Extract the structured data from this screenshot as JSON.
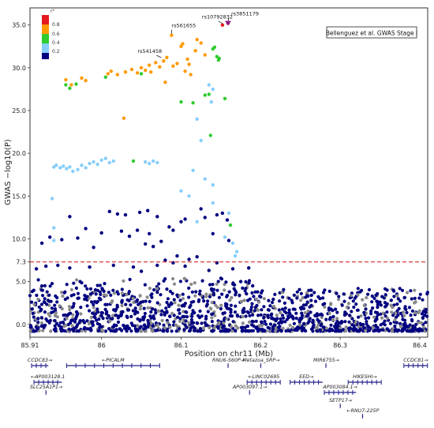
{
  "chart_data": {
    "type": "scatter",
    "title": "",
    "xlabel": "Position on chr11 (Mb)",
    "ylabel": "GWAS −log10(P)",
    "xlim": [
      85.91,
      86.41
    ],
    "ylim": [
      -1.5,
      37
    ],
    "x_ticks": [
      {
        "value": 85.91,
        "label": "85.91"
      },
      {
        "value": 86.0,
        "label": "86"
      },
      {
        "value": 86.1,
        "label": "86.1"
      },
      {
        "value": 86.2,
        "label": "86.2"
      },
      {
        "value": 86.3,
        "label": "86.3"
      },
      {
        "value": 86.4,
        "label": "86.4"
      }
    ],
    "y_ticks": [
      {
        "value": 0,
        "label": "0.0"
      },
      {
        "value": 5,
        "label": "5.0"
      },
      {
        "value": 7.3,
        "label": "7.3"
      },
      {
        "value": 10,
        "label": "10.0"
      },
      {
        "value": 15,
        "label": "15.0"
      },
      {
        "value": 20,
        "label": "20.0"
      },
      {
        "value": 25,
        "label": "25.0"
      },
      {
        "value": 30,
        "label": "30.0"
      },
      {
        "value": 35,
        "label": "35.0"
      }
    ],
    "threshold": {
      "value": 7.3,
      "color": "#d62728"
    },
    "legend_box": "Bellenguez et al. GWAS Stage I",
    "colorbar": {
      "label": "r²",
      "ticks": [
        "0.8",
        "0.6",
        "0.4",
        "0.2"
      ],
      "colors": [
        "#e41a1c",
        "#ff9900",
        "#2ecc2e",
        "#87cefa",
        "#000080"
      ]
    },
    "annotations": [
      {
        "label": "rs3851179",
        "x": 86.159,
        "y": 35.2
      },
      {
        "label": "rs10792832",
        "x": 86.152,
        "y": 35.0
      },
      {
        "label": "rs561655",
        "x": 86.088,
        "y": 33.8
      },
      {
        "label": "rs541458",
        "x": 86.075,
        "y": 31.0
      }
    ],
    "series": [
      {
        "r2_bin": ">0.8",
        "color": "#e41a1c",
        "points": [
          [
            86.159,
            35.2
          ],
          [
            86.152,
            35.0
          ]
        ]
      },
      {
        "r2_bin": "0.6-0.8",
        "color": "#ff9900",
        "points": [
          [
            85.955,
            28.6
          ],
          [
            85.962,
            28.0
          ],
          [
            85.975,
            28.8
          ],
          [
            85.98,
            28.5
          ],
          [
            86.008,
            29.3
          ],
          [
            86.012,
            29.6
          ],
          [
            86.02,
            29.2
          ],
          [
            86.03,
            29.5
          ],
          [
            86.038,
            29.8
          ],
          [
            86.045,
            29.4
          ],
          [
            86.05,
            30.0
          ],
          [
            86.055,
            29.7
          ],
          [
            86.06,
            30.3
          ],
          [
            86.062,
            29.5
          ],
          [
            86.068,
            30.6
          ],
          [
            86.073,
            30.1
          ],
          [
            86.078,
            30.8
          ],
          [
            86.082,
            31.2
          ],
          [
            86.088,
            33.8
          ],
          [
            86.09,
            30.2
          ],
          [
            86.095,
            30.5
          ],
          [
            86.1,
            32.5
          ],
          [
            86.102,
            32.8
          ],
          [
            86.105,
            29.6
          ],
          [
            86.108,
            31.0
          ],
          [
            86.11,
            30.4
          ],
          [
            86.118,
            32.0
          ],
          [
            86.12,
            33.3
          ],
          [
            86.125,
            32.9
          ],
          [
            86.13,
            31.5
          ],
          [
            86.028,
            24.1
          ],
          [
            86.08,
            28.3
          ],
          [
            86.112,
            29.2
          ]
        ]
      },
      {
        "r2_bin": "0.4-0.6",
        "color": "#2ecc2e",
        "points": [
          [
            85.955,
            28.0
          ],
          [
            85.96,
            27.6
          ],
          [
            85.968,
            28.1
          ],
          [
            86.005,
            28.9
          ],
          [
            86.05,
            29.3
          ],
          [
            86.1,
            26.0
          ],
          [
            86.115,
            25.9
          ],
          [
            86.13,
            26.8
          ],
          [
            86.135,
            26.9
          ],
          [
            86.14,
            32.2
          ],
          [
            86.142,
            32.4
          ],
          [
            86.145,
            31.3
          ],
          [
            86.147,
            30.9
          ],
          [
            86.148,
            31.1
          ],
          [
            86.137,
            22.1
          ],
          [
            86.155,
            26.4
          ],
          [
            86.04,
            19.1
          ],
          [
            86.162,
            11.6
          ]
        ]
      },
      {
        "r2_bin": "0.2-0.4",
        "color": "#87cefa",
        "points": [
          [
            85.94,
            18.4
          ],
          [
            85.943,
            18.6
          ],
          [
            85.948,
            18.3
          ],
          [
            85.952,
            18.5
          ],
          [
            85.956,
            18.2
          ],
          [
            85.96,
            18.4
          ],
          [
            85.964,
            17.9
          ],
          [
            85.97,
            18.1
          ],
          [
            85.975,
            18.6
          ],
          [
            85.98,
            18.3
          ],
          [
            85.985,
            18.8
          ],
          [
            85.99,
            19.0
          ],
          [
            85.995,
            18.7
          ],
          [
            86.0,
            19.2
          ],
          [
            86.005,
            19.4
          ],
          [
            86.01,
            18.9
          ],
          [
            86.015,
            19.1
          ],
          [
            86.055,
            19.0
          ],
          [
            86.06,
            18.8
          ],
          [
            86.065,
            19.1
          ],
          [
            86.07,
            18.9
          ],
          [
            86.135,
            28.0
          ],
          [
            86.14,
            27.5
          ],
          [
            86.138,
            26.0
          ],
          [
            86.12,
            24.0
          ],
          [
            86.125,
            21.5
          ],
          [
            86.115,
            18.0
          ],
          [
            86.13,
            17.0
          ],
          [
            86.14,
            16.3
          ],
          [
            86.1,
            15.6
          ],
          [
            86.11,
            15.0
          ],
          [
            86.14,
            14.2
          ],
          [
            86.16,
            13.0
          ],
          [
            86.165,
            9.5
          ],
          [
            86.17,
            8.5
          ],
          [
            86.168,
            8.0
          ],
          [
            85.938,
            14.7
          ],
          [
            85.94,
            11.3
          ],
          [
            85.94,
            9.8
          ],
          [
            86.12,
            12.0
          ],
          [
            86.155,
            10.2
          ]
        ]
      },
      {
        "r2_bin": "<0.2",
        "color": "#000080",
        "points": [
          [
            86.01,
            13.2
          ],
          [
            86.02,
            12.9
          ],
          [
            86.03,
            12.8
          ],
          [
            86.048,
            13.1
          ],
          [
            86.058,
            13.3
          ],
          [
            86.07,
            12.6
          ],
          [
            86.085,
            11.4
          ],
          [
            86.09,
            11.0
          ],
          [
            86.1,
            12.0
          ],
          [
            86.105,
            12.3
          ],
          [
            86.125,
            13.5
          ],
          [
            86.13,
            12.5
          ],
          [
            86.145,
            12.8
          ],
          [
            86.152,
            13.0
          ],
          [
            86.158,
            12.2
          ],
          [
            85.96,
            12.6
          ],
          [
            85.98,
            11.2
          ],
          [
            86.0,
            10.7
          ],
          [
            86.025,
            10.9
          ],
          [
            86.045,
            11.0
          ],
          [
            86.06,
            10.6
          ],
          [
            86.075,
            9.7
          ],
          [
            86.095,
            8.0
          ],
          [
            86.11,
            7.6
          ],
          [
            86.12,
            7.9
          ],
          [
            85.925,
            9.5
          ],
          [
            85.935,
            10.2
          ],
          [
            85.95,
            9.9
          ],
          [
            85.97,
            10.1
          ],
          [
            85.99,
            9.0
          ],
          [
            86.035,
            10.3
          ],
          [
            86.055,
            9.4
          ],
          [
            86.065,
            9.1
          ],
          [
            86.08,
            7.5
          ],
          [
            86.14,
            10.6
          ],
          [
            86.16,
            9.8
          ],
          [
            85.918,
            6.5
          ],
          [
            85.93,
            6.8
          ],
          [
            85.945,
            6.9
          ],
          [
            85.96,
            6.6
          ],
          [
            85.985,
            6.7
          ],
          [
            86.015,
            6.9
          ],
          [
            86.04,
            6.7
          ],
          [
            86.05,
            6.2
          ],
          [
            86.07,
            6.9
          ],
          [
            86.09,
            7.2
          ],
          [
            86.105,
            6.8
          ],
          [
            86.135,
            6.3
          ],
          [
            86.145,
            7.2
          ],
          [
            86.165,
            6.5
          ],
          [
            86.185,
            6.6
          ],
          [
            86.175,
            5.0
          ],
          [
            86.19,
            4.5
          ],
          [
            86.2,
            3.2
          ]
        ]
      },
      {
        "r2_bin": "na",
        "color": "#888888",
        "points": []
      }
    ],
    "baseline_cloud": {
      "x_range": [
        85.91,
        86.41
      ],
      "y_range": [
        -0.8,
        4.2
      ],
      "note_scatter_generated": true
    }
  },
  "genes": [
    {
      "label": "CCDC83→",
      "start": 85.912,
      "end": 85.933,
      "row": 0
    },
    {
      "label": "←PICALM",
      "start": 85.956,
      "end": 86.073,
      "row": 0
    },
    {
      "label": "RNU6-560P→",
      "start": 86.159,
      "end": 86.159,
      "row": 0
    },
    {
      "label": "Metazoa_SRP→",
      "start": 86.2,
      "end": 86.2,
      "row": 0
    },
    {
      "label": "MIR6755→",
      "start": 86.282,
      "end": 86.282,
      "row": 0
    },
    {
      "label": "CCDC81→",
      "start": 86.38,
      "end": 86.41,
      "row": 0
    },
    {
      "label": "←AP003128.1",
      "start": 85.915,
      "end": 85.95,
      "row": 1
    },
    {
      "label": "←LINC02695",
      "start": 86.183,
      "end": 86.225,
      "row": 1
    },
    {
      "label": "EED→",
      "start": 86.237,
      "end": 86.278,
      "row": 1
    },
    {
      "label": "HIKESHI→",
      "start": 86.31,
      "end": 86.352,
      "row": 1
    },
    {
      "label": "SLC25A1P1→",
      "start": 85.93,
      "end": 85.93,
      "row": 2
    },
    {
      "label": "AP003097.1→",
      "start": 86.186,
      "end": 86.186,
      "row": 2
    },
    {
      "label": "AP003084.1→",
      "start": 86.28,
      "end": 86.32,
      "row": 2
    },
    {
      "label": "SETP17→",
      "start": 86.3,
      "end": 86.3,
      "row": 3
    },
    {
      "label": "←RNU7-225P",
      "start": 86.328,
      "end": 86.328,
      "row": 4
    }
  ]
}
